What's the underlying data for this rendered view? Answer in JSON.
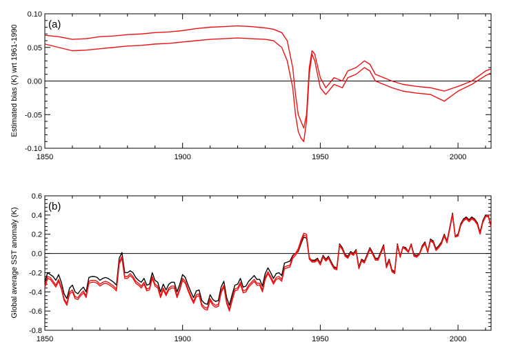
{
  "chart_data": [
    {
      "type": "line",
      "panel_label": "(a)",
      "ylabel": "Estimated bias (K) wrt 1961-1990",
      "xlim": [
        1850,
        2012
      ],
      "ylim": [
        -0.1,
        0.1
      ],
      "xticks": [
        1850,
        1900,
        1950,
        2000
      ],
      "yticks": [
        "0.10",
        "0.05",
        "0.00",
        "-0.05",
        "-0.10"
      ],
      "ytick_values": [
        0.1,
        0.05,
        0.0,
        -0.05,
        -0.1
      ],
      "zero_line": true,
      "series": [
        {
          "color": "#ee1111",
          "x": [
            1850,
            1855,
            1860,
            1865,
            1870,
            1875,
            1880,
            1885,
            1890,
            1895,
            1900,
            1905,
            1910,
            1915,
            1920,
            1925,
            1930,
            1933,
            1936,
            1938,
            1940,
            1941,
            1942,
            1943,
            1944,
            1945,
            1946,
            1947,
            1948,
            1950,
            1952,
            1955,
            1958,
            1960,
            1963,
            1966,
            1968,
            1970,
            1973,
            1976,
            1980,
            1985,
            1990,
            1995,
            2000,
            2005,
            2010,
            2012
          ],
          "y": [
            0.068,
            0.066,
            0.062,
            0.063,
            0.066,
            0.067,
            0.069,
            0.07,
            0.072,
            0.073,
            0.075,
            0.078,
            0.08,
            0.081,
            0.082,
            0.081,
            0.079,
            0.077,
            0.072,
            0.06,
            0.02,
            -0.02,
            -0.05,
            -0.06,
            -0.07,
            -0.05,
            0.02,
            0.045,
            0.04,
            0.005,
            -0.01,
            0.005,
            0.0,
            0.015,
            0.02,
            0.03,
            0.025,
            0.01,
            0.005,
            0.0,
            -0.005,
            -0.008,
            -0.01,
            -0.015,
            -0.008,
            0.0,
            0.015,
            0.018
          ]
        },
        {
          "color": "#ee1111",
          "x": [
            1850,
            1855,
            1860,
            1865,
            1870,
            1875,
            1880,
            1885,
            1890,
            1895,
            1900,
            1905,
            1910,
            1915,
            1920,
            1925,
            1930,
            1933,
            1936,
            1938,
            1940,
            1941,
            1942,
            1943,
            1944,
            1945,
            1946,
            1947,
            1948,
            1950,
            1952,
            1955,
            1958,
            1960,
            1963,
            1966,
            1968,
            1970,
            1973,
            1976,
            1980,
            1985,
            1990,
            1995,
            2000,
            2005,
            2010,
            2012
          ],
          "y": [
            0.055,
            0.05,
            0.045,
            0.046,
            0.048,
            0.05,
            0.052,
            0.053,
            0.055,
            0.056,
            0.058,
            0.06,
            0.062,
            0.063,
            0.064,
            0.063,
            0.062,
            0.06,
            0.05,
            0.03,
            -0.01,
            -0.05,
            -0.075,
            -0.085,
            -0.09,
            -0.06,
            0.01,
            0.04,
            0.03,
            -0.01,
            -0.02,
            -0.005,
            -0.01,
            0.005,
            0.01,
            0.02,
            0.015,
            0.0,
            -0.005,
            -0.01,
            -0.015,
            -0.018,
            -0.02,
            -0.03,
            -0.015,
            -0.005,
            0.008,
            0.012
          ]
        }
      ]
    },
    {
      "type": "line",
      "panel_label": "(b)",
      "ylabel": "Global average SST anomaly (K)",
      "xlim": [
        1850,
        2012
      ],
      "ylim": [
        -0.8,
        0.6
      ],
      "xticks": [
        1850,
        1900,
        1950,
        2000
      ],
      "yticks": [
        "0.6",
        "0.4",
        "0.2",
        "0.0",
        "-0.2",
        "-0.4",
        "-0.6",
        "-0.8"
      ],
      "ytick_values": [
        0.6,
        0.4,
        0.2,
        0.0,
        -0.2,
        -0.4,
        -0.6,
        -0.8
      ],
      "zero_line": true,
      "years": [
        1850,
        1851,
        1852,
        1853,
        1854,
        1855,
        1856,
        1857,
        1858,
        1859,
        1860,
        1861,
        1862,
        1863,
        1864,
        1865,
        1866,
        1867,
        1868,
        1869,
        1870,
        1871,
        1872,
        1873,
        1874,
        1875,
        1876,
        1877,
        1878,
        1879,
        1880,
        1881,
        1882,
        1883,
        1884,
        1885,
        1886,
        1887,
        1888,
        1889,
        1890,
        1891,
        1892,
        1893,
        1894,
        1895,
        1896,
        1897,
        1898,
        1899,
        1900,
        1901,
        1902,
        1903,
        1904,
        1905,
        1906,
        1907,
        1908,
        1909,
        1910,
        1911,
        1912,
        1913,
        1914,
        1915,
        1916,
        1917,
        1918,
        1919,
        1920,
        1921,
        1922,
        1923,
        1924,
        1925,
        1926,
        1927,
        1928,
        1929,
        1930,
        1931,
        1932,
        1933,
        1934,
        1935,
        1936,
        1937,
        1938,
        1939,
        1940,
        1941,
        1942,
        1943,
        1944,
        1945,
        1946,
        1947,
        1948,
        1949,
        1950,
        1951,
        1952,
        1953,
        1954,
        1955,
        1956,
        1957,
        1958,
        1959,
        1960,
        1961,
        1962,
        1963,
        1964,
        1965,
        1966,
        1967,
        1968,
        1969,
        1970,
        1971,
        1972,
        1973,
        1974,
        1975,
        1976,
        1977,
        1978,
        1979,
        1980,
        1981,
        1982,
        1983,
        1984,
        1985,
        1986,
        1987,
        1988,
        1989,
        1990,
        1991,
        1992,
        1993,
        1994,
        1995,
        1996,
        1997,
        1998,
        1999,
        2000,
        2001,
        2002,
        2003,
        2004,
        2005,
        2006,
        2007,
        2008,
        2009,
        2010,
        2011,
        2012
      ],
      "series": [
        {
          "color": "#000000",
          "y": [
            -0.3,
            -0.2,
            -0.22,
            -0.24,
            -0.28,
            -0.22,
            -0.3,
            -0.42,
            -0.47,
            -0.36,
            -0.33,
            -0.4,
            -0.42,
            -0.38,
            -0.35,
            -0.4,
            -0.25,
            -0.24,
            -0.24,
            -0.25,
            -0.28,
            -0.26,
            -0.25,
            -0.26,
            -0.28,
            -0.3,
            -0.33,
            -0.05,
            0.01,
            -0.2,
            -0.2,
            -0.18,
            -0.2,
            -0.25,
            -0.28,
            -0.3,
            -0.26,
            -0.33,
            -0.32,
            -0.2,
            -0.28,
            -0.3,
            -0.4,
            -0.32,
            -0.38,
            -0.32,
            -0.3,
            -0.3,
            -0.4,
            -0.32,
            -0.22,
            -0.25,
            -0.33,
            -0.4,
            -0.46,
            -0.39,
            -0.38,
            -0.49,
            -0.52,
            -0.53,
            -0.43,
            -0.48,
            -0.5,
            -0.49,
            -0.35,
            -0.29,
            -0.46,
            -0.54,
            -0.43,
            -0.33,
            -0.32,
            -0.26,
            -0.35,
            -0.34,
            -0.29,
            -0.26,
            -0.23,
            -0.27,
            -0.27,
            -0.34,
            -0.21,
            -0.15,
            -0.2,
            -0.26,
            -0.21,
            -0.2,
            -0.23,
            -0.1,
            -0.09,
            -0.08,
            -0.02,
            0.0,
            0.02,
            0.1,
            0.17,
            0.16,
            -0.05,
            -0.07,
            -0.07,
            -0.05,
            -0.1,
            -0.02,
            -0.06,
            -0.03,
            -0.09,
            -0.14,
            -0.15,
            0.1,
            0.06,
            -0.01,
            -0.03,
            0.02,
            0.0,
            0.04,
            -0.14,
            -0.06,
            -0.08,
            -0.01,
            0.06,
            0.01,
            -0.05,
            -0.05,
            0.02,
            0.09,
            -0.13,
            -0.06,
            -0.17,
            -0.19,
            0.1,
            -0.03,
            0.07,
            0.06,
            0.02,
            0.1,
            -0.01,
            -0.02,
            0.0,
            0.08,
            0.12,
            0.02,
            0.15,
            0.13,
            0.05,
            0.08,
            0.12,
            0.2,
            0.13,
            0.27,
            0.42,
            0.18,
            0.2,
            0.31,
            0.36,
            0.38,
            0.35,
            0.38,
            0.36,
            0.32,
            0.22,
            0.34,
            0.4,
            0.38,
            0.3
          ]
        },
        {
          "color": "#ee1111",
          "y": [
            -0.34,
            -0.24,
            -0.25,
            -0.29,
            -0.33,
            -0.27,
            -0.35,
            -0.47,
            -0.52,
            -0.4,
            -0.38,
            -0.45,
            -0.46,
            -0.42,
            -0.39,
            -0.44,
            -0.29,
            -0.28,
            -0.28,
            -0.29,
            -0.32,
            -0.3,
            -0.29,
            -0.3,
            -0.32,
            -0.34,
            -0.37,
            -0.09,
            -0.03,
            -0.24,
            -0.24,
            -0.21,
            -0.24,
            -0.29,
            -0.31,
            -0.34,
            -0.3,
            -0.37,
            -0.36,
            -0.24,
            -0.32,
            -0.34,
            -0.44,
            -0.36,
            -0.42,
            -0.36,
            -0.34,
            -0.34,
            -0.44,
            -0.36,
            -0.26,
            -0.29,
            -0.37,
            -0.44,
            -0.5,
            -0.43,
            -0.42,
            -0.53,
            -0.56,
            -0.57,
            -0.47,
            -0.52,
            -0.54,
            -0.53,
            -0.39,
            -0.33,
            -0.5,
            -0.58,
            -0.47,
            -0.37,
            -0.36,
            -0.3,
            -0.39,
            -0.38,
            -0.33,
            -0.3,
            -0.27,
            -0.31,
            -0.31,
            -0.38,
            -0.25,
            -0.19,
            -0.24,
            -0.3,
            -0.25,
            -0.24,
            -0.27,
            -0.14,
            -0.13,
            -0.12,
            -0.03,
            0.0,
            0.05,
            0.14,
            0.21,
            0.2,
            -0.04,
            -0.08,
            -0.08,
            -0.06,
            -0.11,
            -0.03,
            -0.07,
            -0.04,
            -0.1,
            -0.15,
            -0.16,
            0.09,
            0.05,
            -0.02,
            -0.04,
            0.01,
            -0.01,
            0.03,
            -0.15,
            -0.07,
            -0.09,
            -0.02,
            0.05,
            0.0,
            -0.06,
            -0.06,
            0.01,
            0.08,
            -0.14,
            -0.07,
            -0.18,
            -0.2,
            0.09,
            -0.03,
            0.07,
            0.05,
            0.02,
            0.1,
            -0.02,
            -0.03,
            0.0,
            0.07,
            0.11,
            0.02,
            0.14,
            0.12,
            0.04,
            0.07,
            0.11,
            0.19,
            0.12,
            0.26,
            0.41,
            0.18,
            0.19,
            0.3,
            0.35,
            0.37,
            0.34,
            0.37,
            0.35,
            0.31,
            0.21,
            0.33,
            0.39,
            0.4,
            0.28
          ]
        },
        {
          "color": "#ee1111",
          "y": [
            -0.36,
            -0.26,
            -0.27,
            -0.31,
            -0.35,
            -0.29,
            -0.37,
            -0.49,
            -0.54,
            -0.42,
            -0.4,
            -0.47,
            -0.48,
            -0.44,
            -0.41,
            -0.46,
            -0.31,
            -0.3,
            -0.3,
            -0.31,
            -0.34,
            -0.32,
            -0.31,
            -0.32,
            -0.34,
            -0.36,
            -0.39,
            -0.11,
            -0.05,
            -0.26,
            -0.26,
            -0.23,
            -0.26,
            -0.31,
            -0.33,
            -0.36,
            -0.32,
            -0.39,
            -0.38,
            -0.26,
            -0.34,
            -0.36,
            -0.46,
            -0.38,
            -0.44,
            -0.38,
            -0.36,
            -0.36,
            -0.46,
            -0.38,
            -0.28,
            -0.31,
            -0.39,
            -0.46,
            -0.52,
            -0.45,
            -0.44,
            -0.55,
            -0.58,
            -0.59,
            -0.49,
            -0.54,
            -0.56,
            -0.55,
            -0.41,
            -0.35,
            -0.52,
            -0.6,
            -0.49,
            -0.39,
            -0.38,
            -0.32,
            -0.41,
            -0.4,
            -0.35,
            -0.32,
            -0.29,
            -0.33,
            -0.33,
            -0.4,
            -0.27,
            -0.21,
            -0.26,
            -0.32,
            -0.27,
            -0.26,
            -0.29,
            -0.16,
            -0.15,
            -0.14,
            -0.05,
            -0.02,
            0.03,
            0.12,
            0.19,
            0.18,
            -0.06,
            -0.09,
            -0.09,
            -0.07,
            -0.12,
            -0.04,
            -0.08,
            -0.05,
            -0.11,
            -0.16,
            -0.17,
            0.08,
            0.04,
            -0.03,
            -0.05,
            0.0,
            -0.02,
            0.02,
            -0.16,
            -0.08,
            -0.1,
            -0.03,
            0.04,
            -0.01,
            -0.07,
            -0.07,
            0.0,
            0.07,
            -0.15,
            -0.08,
            -0.19,
            -0.21,
            0.08,
            -0.04,
            0.06,
            0.04,
            0.01,
            0.09,
            -0.03,
            -0.04,
            -0.01,
            0.06,
            0.1,
            0.01,
            0.13,
            0.11,
            0.03,
            0.06,
            0.1,
            0.18,
            0.11,
            0.25,
            0.4,
            0.17,
            0.18,
            0.29,
            0.34,
            0.36,
            0.33,
            0.36,
            0.34,
            0.3,
            0.2,
            0.32,
            0.38,
            0.39,
            0.27
          ]
        }
      ]
    }
  ]
}
